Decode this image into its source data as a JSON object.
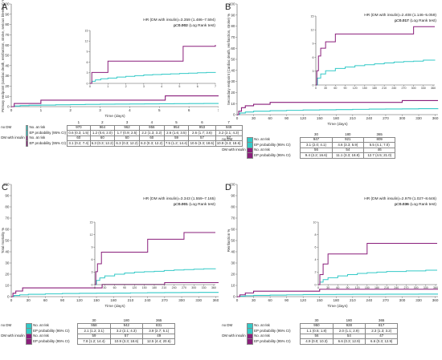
{
  "colors": {
    "no_dm": "#33c9c7",
    "dm_insulin": "#8a1f7b",
    "axis": "#555555"
  },
  "panels": [
    {
      "letter": "A",
      "hr_text": "HR (DM with insulin)=3.359 (1.486–7.594)",
      "p_bold": "p=0.002",
      "p_tail": " (Log Rank test)",
      "table": {
        "header": [
          "1",
          "2",
          "3",
          "4",
          "5",
          "6",
          "7"
        ],
        "rows": [
          {
            "group": "no DM",
            "measure": "No. at risk",
            "values": [
              "970",
              "964",
              "962",
              "956",
              "954",
              "953",
              "949"
            ]
          },
          {
            "group": "",
            "measure": "EP probability (95% CI)",
            "values": [
              "0.6 (0.3; 1.5)",
              "1.2 (0.6; 2.0)",
              "1.7 (0.9; 2.5)",
              "2.2 (1.3; 3.2)",
              "2.6 (1.6; 3.5)",
              "2.6 (1.7; 3.6)",
              "3.2 (2.1; 4.3)"
            ]
          },
          {
            "group": "DM with insulin",
            "measure": "No. at risk",
            "values": [
              "60",
              "60",
              "60",
              "60",
              "59",
              "57",
              "57"
            ]
          },
          {
            "group": "",
            "measure": "EP probability (95% CI)",
            "values": [
              "3.1 (0.2; 7.4)",
              "6.3 (0.3; 12.2)",
              "6.3 (0.3; 12.2)",
              "6.3 (0.3; 12.2)",
              "7.5 (1.2; 14.4)",
              "10.5 (3.3; 18.6)",
              "10.9 (3.3; 18.6)"
            ]
          }
        ]
      },
      "chart_data": {
        "type": "line",
        "ylabel": "Primary endpoint (cardiac death, reinfarction, stroke, serious bleeding) %",
        "xlabel": "Time (days)",
        "xlim": [
          0,
          7
        ],
        "ylim": [
          0,
          100
        ],
        "xticks": [
          "0",
          "1",
          "2",
          "3",
          "4",
          "5",
          "6",
          "7"
        ],
        "yticks": [
          "0",
          "10",
          "20",
          "30",
          "40",
          "50",
          "60",
          "70",
          "80",
          "90",
          "100"
        ],
        "inset": {
          "xlim": [
            0,
            7
          ],
          "ylim": [
            0,
            15
          ],
          "xticks": [
            "0",
            "1",
            "2",
            "3",
            "4",
            "5",
            "6",
            "7"
          ],
          "yticks": [
            "0",
            "3",
            "6",
            "9",
            "12",
            "15"
          ]
        },
        "series": [
          {
            "key": "no_dm",
            "x": [
              0,
              0.1,
              0.3,
              0.6,
              1,
              1.5,
              2,
              2.5,
              3,
              3.5,
              4,
              4.5,
              5,
              5.5,
              6,
              6.5,
              7
            ],
            "y": [
              0,
              0.6,
              1.0,
              1.3,
              1.5,
              1.8,
              2.0,
              2.2,
              2.4,
              2.5,
              2.6,
              2.7,
              2.8,
              2.9,
              3.0,
              3.1,
              3.2
            ]
          },
          {
            "key": "dm_insulin",
            "x": [
              0,
              0.1,
              1,
              4,
              5.2,
              7
            ],
            "y": [
              0,
              3.1,
              6.3,
              6.3,
              10.5,
              10.9
            ]
          }
        ]
      }
    },
    {
      "letter": "B",
      "hr_text": "HR (DM with insulin)=2.408 (1.146–5.059)",
      "p_bold": "p=0.017",
      "p_tail": " (Log Rank test)",
      "table": {
        "header": [
          "30",
          "180",
          "365"
        ],
        "rows": [
          {
            "group": "no DM",
            "measure": "No. at risk",
            "values": [
              "947",
              "921",
              "809"
            ]
          },
          {
            "group": "",
            "measure": "EP probability (95% CI)",
            "values": [
              "3.1 (2.0; 4.1)",
              "4.6 (3.3; 5.9)",
              "5.5 (4.1; 7.0)"
            ]
          },
          {
            "group": "DM with insulin",
            "measure": "No. at risk",
            "values": [
              "56",
              "54",
              "46"
            ]
          },
          {
            "group": "",
            "measure": "EP probability (95% CI)",
            "values": [
              "9.4 (2.2; 16.6)",
              "11.1 (3.3; 18.8)",
              "12.7 (4.5; 21.0)"
            ]
          }
        ]
      },
      "chart_data": {
        "type": "line",
        "ylabel": "Secondary endpoint (Cardiac death, reinfarction, stroke) %",
        "xlabel": "Time (days)",
        "xlim": [
          0,
          365
        ],
        "ylim": [
          0,
          100
        ],
        "xticks": [
          "0",
          "30",
          "60",
          "90",
          "120",
          "150",
          "180",
          "210",
          "240",
          "270",
          "300",
          "330",
          "360"
        ],
        "yticks": [
          "0",
          "10",
          "20",
          "30",
          "40",
          "50",
          "60",
          "70",
          "80",
          "90",
          "100"
        ],
        "inset": {
          "xlim": [
            0,
            365
          ],
          "ylim": [
            0,
            15
          ],
          "xticks": [
            "0",
            "30",
            "60",
            "90",
            "120",
            "150",
            "180",
            "210",
            "240",
            "270",
            "300",
            "330",
            "360"
          ],
          "yticks": [
            "0",
            "3",
            "6",
            "9",
            "12",
            "15"
          ]
        },
        "series": [
          {
            "key": "no_dm",
            "x": [
              0,
              5,
              15,
              30,
              60,
              90,
              120,
              150,
              180,
              210,
              240,
              270,
              300,
              330,
              365
            ],
            "y": [
              0,
              1.5,
              2.4,
              3.1,
              3.6,
              3.9,
              4.2,
              4.4,
              4.6,
              4.8,
              5.0,
              5.1,
              5.2,
              5.4,
              5.5
            ]
          },
          {
            "key": "dm_insulin",
            "x": [
              0,
              3,
              8,
              15,
              30,
              60,
              180,
              300,
              365
            ],
            "y": [
              0,
              3.1,
              6.3,
              8,
              9.4,
              11.1,
              11.1,
              12.7,
              12.7
            ]
          }
        ]
      }
    },
    {
      "letter": "C",
      "hr_text": "HR (DM with insulin)=3.343 (1.559–7.165)",
      "p_bold": "p=0.001",
      "p_tail": " (Log Rank test)",
      "table": {
        "header": [
          "30",
          "180",
          "365"
        ],
        "rows": [
          {
            "group": "no DM",
            "measure": "No. at risk",
            "values": [
              "958",
              "942",
              "831"
            ]
          },
          {
            "group": "",
            "measure": "EP probability (95% CI)",
            "values": [
              "2.1 (1.2; 3.1)",
              "3.2 (2.1; 4.3)",
              "3.9 (2.7; 5.1)"
            ]
          },
          {
            "group": "DM with insulin",
            "measure": "No. at risk",
            "values": [
              "59",
              "57",
              "49"
            ]
          },
          {
            "group": "",
            "measure": "EP probability (95% CI)",
            "values": [
              "7.8 (1.2; 14.4)",
              "10.9 (3.3; 18.6)",
              "12.5 (4.4; 20.6)"
            ]
          }
        ]
      },
      "chart_data": {
        "type": "line",
        "ylabel": "Total mortality %",
        "xlabel": "Time (days)",
        "xlim": [
          0,
          365
        ],
        "ylim": [
          0,
          100
        ],
        "xticks": [
          "0",
          "30",
          "60",
          "90",
          "120",
          "150",
          "180",
          "210",
          "240",
          "270",
          "300",
          "330",
          "360"
        ],
        "yticks": [
          "0",
          "10",
          "20",
          "30",
          "40",
          "50",
          "60",
          "70",
          "80",
          "90",
          "100"
        ],
        "inset": {
          "xlim": [
            0,
            365
          ],
          "ylim": [
            0,
            15
          ],
          "xticks": [
            "0",
            "30",
            "60",
            "90",
            "120",
            "150",
            "180",
            "210",
            "240",
            "270",
            "300",
            "330",
            "360"
          ],
          "yticks": [
            "0",
            "3",
            "6",
            "9",
            "12",
            "15"
          ]
        },
        "series": [
          {
            "key": "no_dm",
            "x": [
              0,
              5,
              15,
              30,
              60,
              90,
              120,
              150,
              180,
              210,
              240,
              270,
              300,
              330,
              365
            ],
            "y": [
              0,
              1.0,
              1.6,
              2.1,
              2.5,
              2.8,
              3.0,
              3.1,
              3.2,
              3.4,
              3.5,
              3.6,
              3.7,
              3.8,
              3.9
            ]
          },
          {
            "key": "dm_insulin",
            "x": [
              0,
              3,
              8,
              20,
              30,
              160,
              180,
              270,
              365
            ],
            "y": [
              0,
              3.1,
              5,
              7.8,
              7.8,
              10.9,
              10.9,
              12.5,
              12.5
            ]
          }
        ]
      }
    },
    {
      "letter": "D",
      "hr_text": "HR (DM with insulin)=2.979 (1.027–8.646)",
      "p_bold": "p=0.036",
      "p_tail": " (Log Rank test)",
      "table": {
        "header": [
          "30",
          "180",
          "365"
        ],
        "rows": [
          {
            "group": "no DM",
            "measure": "No. at risk",
            "values": [
              "950",
              "928",
              "817"
            ]
          },
          {
            "group": "",
            "measure": "EP probability (95% CI)",
            "values": [
              "1.1 (0.5; 1.8)",
              "2.0 (1.1; 2.9)",
              "2.3 (1.3; 3.2)"
            ]
          },
          {
            "group": "DM with insulin",
            "measure": "No. at risk",
            "values": [
              "56",
              "54",
              "47"
            ]
          },
          {
            "group": "",
            "measure": "EP probability (95% CI)",
            "values": [
              "4.9 (0.0; 10.3)",
              "6.6 (0.3; 12.9)",
              "6.6 (0.3; 12.9)"
            ]
          }
        ]
      },
      "chart_data": {
        "type": "line",
        "ylabel": "Reinfarction %",
        "xlabel": "Time (days)",
        "xlim": [
          0,
          365
        ],
        "ylim": [
          0,
          100
        ],
        "xticks": [
          "0",
          "30",
          "60",
          "90",
          "120",
          "150",
          "180",
          "210",
          "240",
          "270",
          "300",
          "330",
          "360"
        ],
        "yticks": [
          "0",
          "10",
          "20",
          "30",
          "40",
          "50",
          "60",
          "70",
          "80",
          "90",
          "100"
        ],
        "inset": {
          "xlim": [
            0,
            365
          ],
          "ylim": [
            0,
            10
          ],
          "xticks": [
            "0",
            "30",
            "60",
            "90",
            "120",
            "150",
            "180",
            "210",
            "240",
            "270",
            "300",
            "330",
            "360"
          ],
          "yticks": [
            "0",
            "2",
            "4",
            "6",
            "8",
            "10"
          ]
        },
        "series": [
          {
            "key": "no_dm",
            "x": [
              0,
              5,
              15,
              30,
              60,
              90,
              120,
              150,
              180,
              210,
              240,
              270,
              300,
              330,
              365
            ],
            "y": [
              0,
              0.4,
              0.8,
              1.1,
              1.4,
              1.6,
              1.8,
              1.9,
              2.0,
              2.1,
              2.1,
              2.2,
              2.2,
              2.3,
              2.3
            ]
          },
          {
            "key": "dm_insulin",
            "x": [
              0,
              5,
              15,
              30,
              150,
              180,
              365
            ],
            "y": [
              0,
              1.6,
              3.3,
              4.9,
              6.6,
              6.6,
              6.6
            ]
          }
        ]
      }
    }
  ]
}
